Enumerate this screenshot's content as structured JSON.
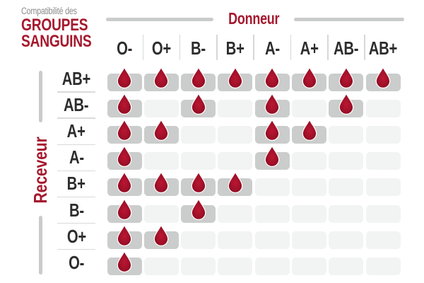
{
  "title": {
    "kicker": "Compatibilité des",
    "line1": "GROUPES",
    "line2": "SANGUINS"
  },
  "chart_data": {
    "type": "heatmap",
    "title": "Compatibilité des GROUPES SANGUINS",
    "x_axis_label": "Donneur",
    "y_axis_label": "Receveur",
    "columns": [
      "O-",
      "O+",
      "B-",
      "B+",
      "A-",
      "A+",
      "AB-",
      "AB+"
    ],
    "rows": [
      "AB+",
      "AB-",
      "A+",
      "A-",
      "B+",
      "B-",
      "O+",
      "O-"
    ],
    "matrix": [
      [
        1,
        1,
        1,
        1,
        1,
        1,
        1,
        1
      ],
      [
        1,
        0,
        1,
        0,
        1,
        0,
        1,
        0
      ],
      [
        1,
        1,
        0,
        0,
        1,
        1,
        0,
        0
      ],
      [
        1,
        0,
        0,
        0,
        1,
        0,
        0,
        0
      ],
      [
        1,
        1,
        1,
        1,
        0,
        0,
        0,
        0
      ],
      [
        1,
        0,
        1,
        0,
        0,
        0,
        0,
        0
      ],
      [
        1,
        1,
        0,
        0,
        0,
        0,
        0,
        0
      ],
      [
        1,
        0,
        0,
        0,
        0,
        0,
        0,
        0
      ]
    ],
    "cell_marker": "blood-drop-icon",
    "cell_marker_meaning": "compatible",
    "legend_position": "none",
    "grid": "off",
    "colors": {
      "accent_red": "#a6192e",
      "drop_red": "#a31129",
      "drop_red_dark": "#850a1f",
      "cell_compatible_bg": "#cacdcc",
      "cell_empty_bg": "#f2f3f3",
      "header_text": "#2d2d2d",
      "kicker_gray": "#8d8d8d",
      "divider_gray": "#c9cccb"
    }
  }
}
